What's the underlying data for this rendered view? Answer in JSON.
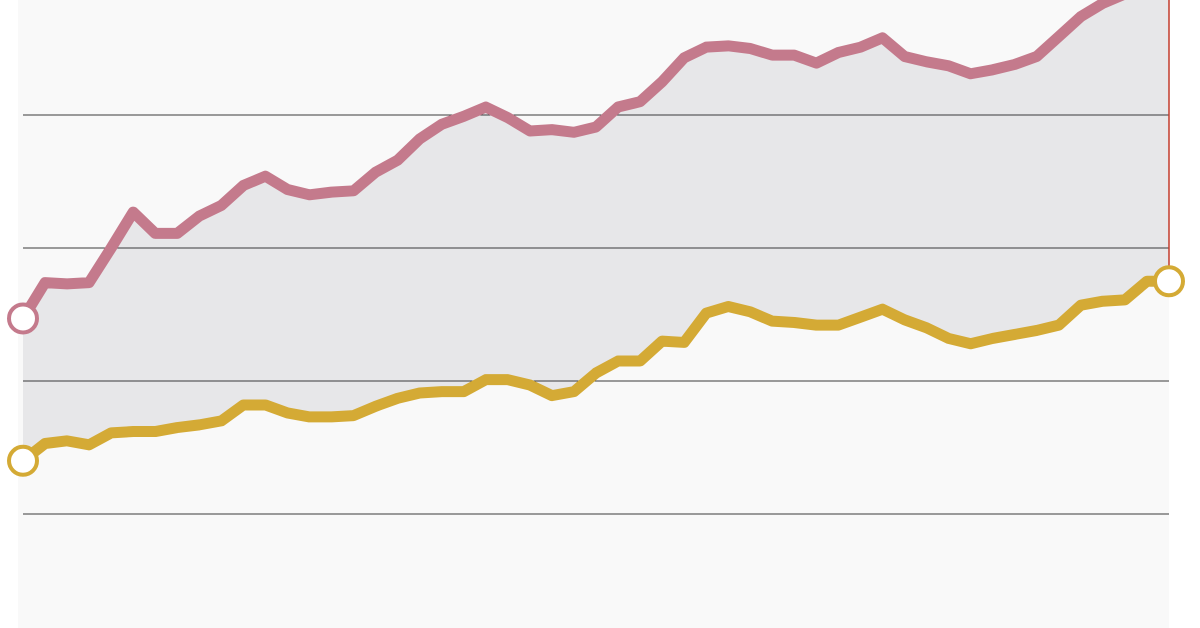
{
  "chart_data": {
    "type": "line",
    "title": "",
    "xlabel": "",
    "ylabel": "",
    "x": [
      0,
      1,
      2,
      3,
      4,
      5,
      6,
      7,
      8,
      9,
      10,
      11,
      12,
      13,
      14,
      15,
      16,
      17,
      18,
      19,
      20,
      21,
      22,
      23,
      24,
      25,
      26,
      27,
      28,
      29,
      30,
      31,
      32,
      33,
      34,
      35,
      36,
      37,
      38,
      39,
      40,
      41,
      42,
      43,
      44,
      45,
      46,
      47,
      48,
      49,
      50,
      51,
      52
    ],
    "ylim": [
      0,
      4.7
    ],
    "y_gridlines": [
      1,
      2,
      3,
      4
    ],
    "grid": true,
    "legend": "none",
    "series": [
      {
        "color": "#c47a8c",
        "marker_ends": "open-circle",
        "values": [
          2.47,
          2.74,
          2.73,
          2.74,
          3.0,
          3.27,
          3.11,
          3.11,
          3.24,
          3.32,
          3.47,
          3.54,
          3.44,
          3.4,
          3.42,
          3.43,
          3.57,
          3.66,
          3.82,
          3.93,
          3.99,
          4.06,
          3.98,
          3.88,
          3.89,
          3.87,
          3.91,
          4.06,
          4.1,
          4.25,
          4.43,
          4.51,
          4.52,
          4.5,
          4.45,
          4.45,
          4.39,
          4.47,
          4.51,
          4.58,
          4.44,
          4.4,
          4.37,
          4.31,
          4.34,
          4.38,
          4.44,
          4.59,
          4.74,
          4.84,
          4.91,
          5.05,
          5.21
        ],
        "end_values": [
          2.47,
          5.21
        ]
      },
      {
        "color": "#d4aa35",
        "marker_ends": "open-circle",
        "values": [
          1.4,
          1.53,
          1.55,
          1.52,
          1.61,
          1.62,
          1.62,
          1.65,
          1.67,
          1.7,
          1.82,
          1.82,
          1.76,
          1.73,
          1.73,
          1.74,
          1.81,
          1.87,
          1.91,
          1.92,
          1.92,
          2.01,
          2.01,
          1.97,
          1.89,
          1.92,
          2.06,
          2.15,
          2.15,
          2.3,
          2.29,
          2.51,
          2.56,
          2.52,
          2.45,
          2.44,
          2.42,
          2.42,
          2.48,
          2.54,
          2.46,
          2.4,
          2.32,
          2.28,
          2.32,
          2.35,
          2.38,
          2.42,
          2.57,
          2.6,
          2.61,
          2.75,
          2.75
        ],
        "end_values": [
          1.4,
          2.75
        ]
      }
    ],
    "band_fill": "#e7e7e9",
    "end_connector_color": "#c43c2c",
    "gridline_color": "#3a3a3a",
    "panel_background": "#f9f9f9"
  }
}
